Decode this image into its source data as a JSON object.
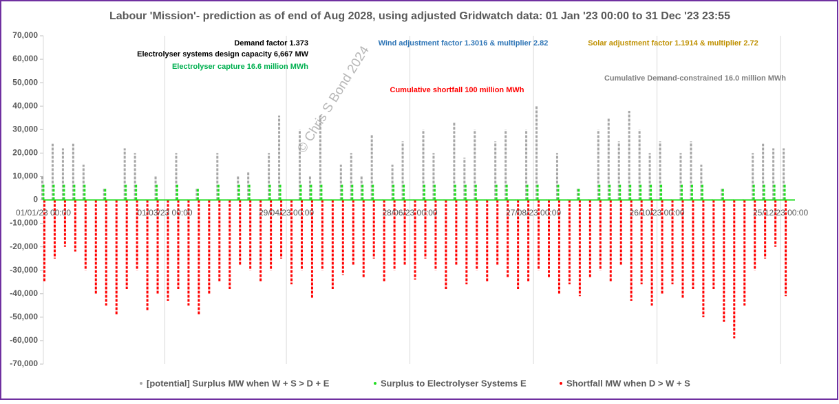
{
  "chart_data": {
    "type": "vbars",
    "title": "Labour 'Mission'- prediction as of end of Aug 2028, using adjusted Gridwatch data:  01 Jan '23 00:00 to 31 Dec '23 23:55",
    "annotations": [
      {
        "text": "Demand factor 1.373",
        "color": "#000000"
      },
      {
        "text": "Electrolyser systems design capacity 6,667 MW",
        "color": "#000000"
      },
      {
        "text": "Electrolyser capture 16.6 million MWh",
        "color": "#00b050"
      },
      {
        "text": "Wind adjustment factor 1.3016 & multiplier 2.82",
        "color": "#2e75b6"
      },
      {
        "text": "Solar adjustment factor 1.1914 & multiplier 2.72",
        "color": "#bf9000"
      },
      {
        "text": "Cumulative Demand-constrained 16.0 million MWh",
        "color": "#808080"
      },
      {
        "text": "Cumulative shortfall 100 million MWh",
        "color": "#ff0000"
      }
    ],
    "watermark": "© Chris S Bond  2024",
    "x": [
      0,
      5,
      10,
      15,
      20,
      25,
      30,
      35,
      40,
      45,
      50,
      55,
      60,
      65,
      70,
      75,
      80,
      85,
      90,
      95,
      100,
      105,
      110,
      115,
      120,
      125,
      130,
      135,
      140,
      145,
      150,
      155,
      160,
      165,
      170,
      175,
      180,
      185,
      190,
      195,
      200,
      205,
      210,
      215,
      220,
      225,
      230,
      235,
      240,
      245,
      250,
      255,
      260,
      265,
      270,
      275,
      280,
      285,
      290,
      295,
      300,
      305,
      310,
      315,
      320,
      325,
      330,
      335,
      340,
      345,
      350,
      355,
      360
    ],
    "xlim": [
      0,
      364.99
    ],
    "xticks": [
      {
        "value": 0,
        "label": "01/01/23 00:00"
      },
      {
        "value": 59,
        "label": "01/03/23 00:00"
      },
      {
        "value": 118,
        "label": "29/04/23 00:00"
      },
      {
        "value": 178,
        "label": "28/06/23 00:00"
      },
      {
        "value": 238,
        "label": "27/08/23 00:00"
      },
      {
        "value": 298,
        "label": "26/10/23 00:00"
      },
      {
        "value": 358,
        "label": "25/12/23 00:00"
      }
    ],
    "ylim": [
      -70000,
      70000
    ],
    "yticks": [
      {
        "value": -70000,
        "label": "-70,000"
      },
      {
        "value": -60000,
        "label": "-60,000"
      },
      {
        "value": -50000,
        "label": "-50,000"
      },
      {
        "value": -40000,
        "label": "-40,000"
      },
      {
        "value": -30000,
        "label": "-30,000"
      },
      {
        "value": -20000,
        "label": "-20,000"
      },
      {
        "value": -10000,
        "label": "-10,000"
      },
      0,
      {
        "value": 10000,
        "label": "10,000"
      },
      {
        "value": 20000,
        "label": "20,000"
      },
      {
        "value": 30000,
        "label": "30,000"
      },
      {
        "value": 40000,
        "label": "40,000"
      },
      {
        "value": 50000,
        "label": "50,000"
      },
      {
        "value": 60000,
        "label": "60,000"
      },
      {
        "value": 70000,
        "label": "70,000"
      }
    ],
    "grid": true,
    "series": [
      {
        "name": "[potential] Surplus MW when W + S > D + E",
        "color": "#a6a6a6",
        "values": [
          10000,
          24000,
          22000,
          24000,
          15000,
          0,
          5000,
          0,
          22000,
          20000,
          0,
          10000,
          0,
          20000,
          0,
          5000,
          0,
          20000,
          0,
          10000,
          12000,
          0,
          20000,
          36000,
          0,
          30000,
          10000,
          36000,
          0,
          15000,
          20000,
          10000,
          28000,
          0,
          15000,
          25000,
          0,
          30000,
          20000,
          0,
          33000,
          18000,
          30000,
          0,
          25000,
          30000,
          0,
          30000,
          40000,
          0,
          20000,
          0,
          5000,
          0,
          30000,
          35000,
          25000,
          38000,
          30000,
          20000,
          25000,
          0,
          20000,
          25000,
          15000,
          0,
          5000,
          0,
          0,
          20000,
          24000,
          22000,
          22000
        ]
      },
      {
        "name": "Surplus to Electrolyser Systems E",
        "color": "#22dd22",
        "values": [
          7000,
          7000,
          7000,
          7000,
          7000,
          0,
          5000,
          0,
          7000,
          7000,
          0,
          7000,
          0,
          7000,
          0,
          5000,
          0,
          7000,
          0,
          7000,
          7000,
          0,
          7000,
          7000,
          0,
          7000,
          7000,
          7000,
          0,
          7000,
          7000,
          7000,
          7000,
          0,
          7000,
          7000,
          0,
          7000,
          7000,
          0,
          7000,
          7000,
          7000,
          0,
          7000,
          7000,
          0,
          7000,
          7000,
          0,
          7000,
          0,
          5000,
          0,
          7000,
          7000,
          7000,
          7000,
          7000,
          7000,
          7000,
          0,
          7000,
          7000,
          7000,
          0,
          5000,
          0,
          0,
          7000,
          7000,
          7000,
          7000
        ]
      },
      {
        "name": "Shortfall MW when D > W + S",
        "color": "#ff0000",
        "values": [
          -35000,
          -25000,
          -20000,
          -22000,
          -30000,
          -40000,
          -45000,
          -49000,
          -38000,
          -30000,
          -47000,
          -40000,
          -43000,
          -38000,
          -45000,
          -49000,
          -40000,
          -35000,
          -38000,
          -28000,
          -30000,
          -35000,
          -30000,
          -25000,
          -36000,
          -30000,
          -42000,
          -30000,
          -38000,
          -32000,
          -28000,
          -33000,
          -25000,
          -35000,
          -30000,
          -28000,
          -34000,
          -25000,
          -30000,
          -38000,
          -28000,
          -36000,
          -30000,
          -35000,
          -28000,
          -33000,
          -38000,
          -35000,
          -30000,
          -33000,
          -40000,
          -36000,
          -41000,
          -33000,
          -30000,
          -35000,
          -28000,
          -43000,
          -36000,
          -45000,
          -40000,
          -36000,
          -42000,
          -38000,
          -50000,
          -38000,
          -52000,
          -59000,
          -45000,
          -30000,
          -25000,
          -20000,
          -41000
        ]
      }
    ]
  }
}
